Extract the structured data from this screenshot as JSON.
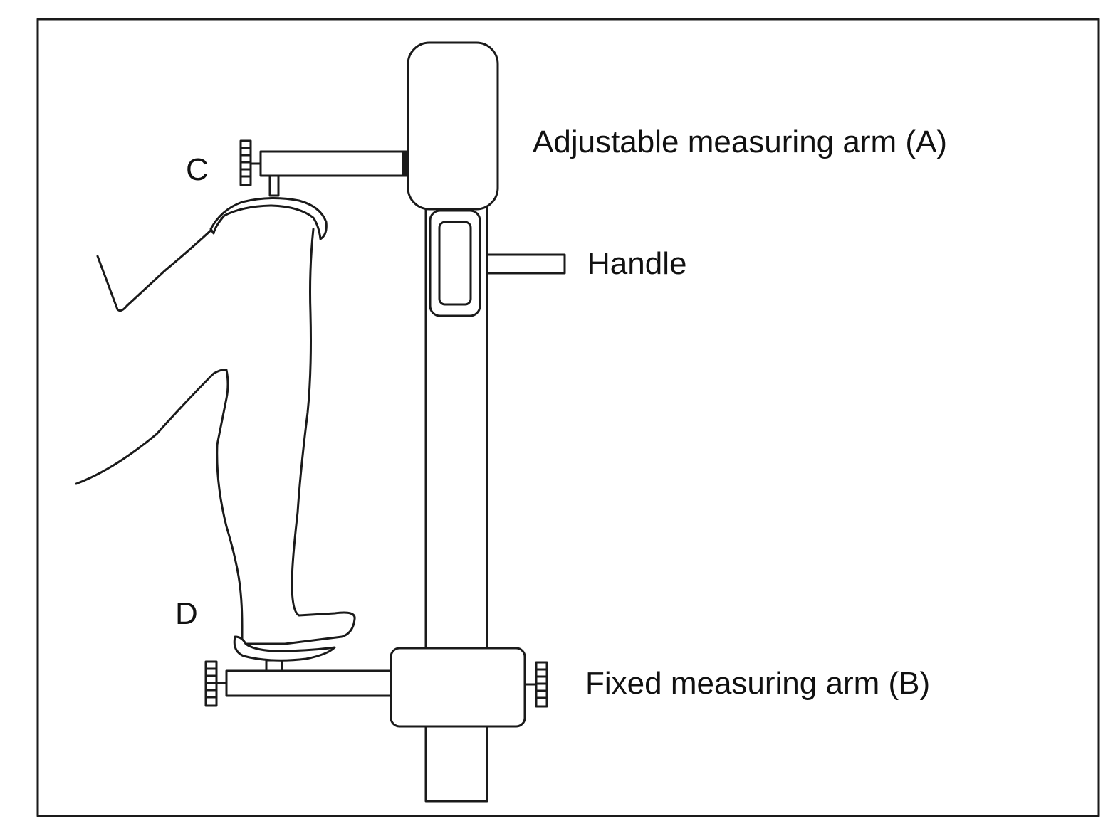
{
  "labels": {
    "adjustable_arm": "Adjustable measuring arm (A)",
    "handle": "Handle",
    "fixed_arm": "Fixed measuring arm (B)",
    "point_c": "C",
    "point_d": "D"
  },
  "colors": {
    "ink": "#1a1a1a",
    "background": "#ffffff"
  }
}
